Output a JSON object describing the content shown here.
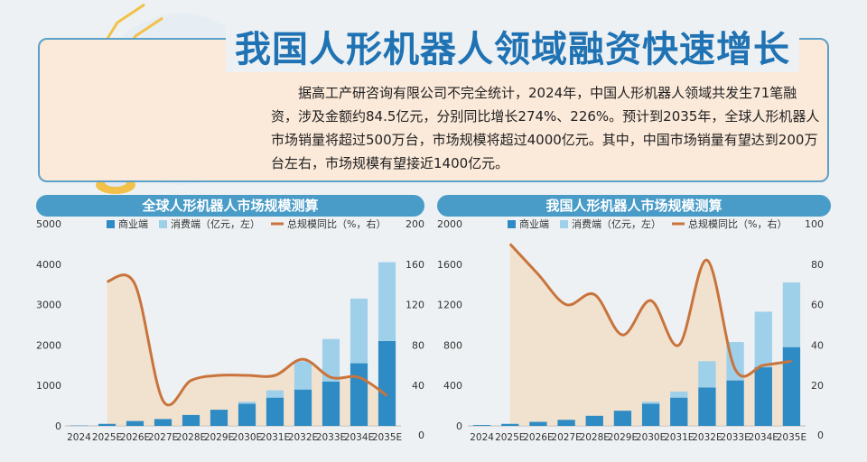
{
  "title": "我国人形机器人领域融资快速增长",
  "intro": "据高工产研咨询有限公司不完全统计，2024年，中国人形机器人领域共发生71笔融资，涉及金额约84.5亿元，分别同比增长274%、226%。预计到2035年，全球人形机器人市场销量将超过500万台，市场规模将超过4000亿元。其中，中国市场销量有望达到200万台左右，市场规模有望接近1400亿元。",
  "colors": {
    "business": "#2e8bc4",
    "consumer": "#9fd0ea",
    "yoy": "#c8743c",
    "header": "#4a9cc8",
    "title": "#1f72b3"
  },
  "chart_data": [
    {
      "type": "bar",
      "title": "全球人形机器人市场规模测算",
      "legend": [
        "商业端",
        "消费端（亿元，左）",
        "总规模同比（%，右）"
      ],
      "categories": [
        "2024",
        "2025E",
        "2026E",
        "2027E",
        "2028E",
        "2029E",
        "2030E",
        "2031E",
        "2032E",
        "2033E",
        "2034E",
        "2035E"
      ],
      "series": [
        {
          "name": "商业端",
          "values": [
            8,
            50,
            120,
            170,
            270,
            400,
            550,
            700,
            900,
            1100,
            1550,
            2100
          ]
        },
        {
          "name": "消费端（亿元，左）",
          "values": [
            0,
            0,
            0,
            0,
            0,
            0,
            50,
            180,
            700,
            1050,
            1600,
            1950
          ]
        },
        {
          "name": "总规模同比（%，右）",
          "values": [
            null,
            143,
            140,
            25,
            45,
            50,
            50,
            50,
            66,
            48,
            48,
            30
          ]
        }
      ],
      "ylim_left": [
        0,
        5000
      ],
      "yticks_left": [
        "0",
        "1000",
        "2000",
        "3000",
        "4000",
        "5000"
      ],
      "ylim_right": [
        0,
        200
      ],
      "yticks_right": [
        "40",
        "80",
        "120",
        "160",
        "200"
      ]
    },
    {
      "type": "bar",
      "title": "我国人形机器人市场规模测算",
      "legend": [
        "商业端",
        "消费端（亿元，左）",
        "总规模同比（%，右）"
      ],
      "categories": [
        "2024",
        "2025E",
        "2026E",
        "2027E",
        "2028E",
        "2029E",
        "2030E",
        "2031E",
        "2032E",
        "2033E",
        "2034E",
        "2035E"
      ],
      "series": [
        {
          "name": "商业端",
          "values": [
            8,
            20,
            40,
            60,
            100,
            150,
            220,
            280,
            380,
            450,
            580,
            780
          ]
        },
        {
          "name": "消费端（亿元，左）",
          "values": [
            0,
            0,
            0,
            0,
            0,
            0,
            20,
            60,
            260,
            380,
            550,
            640
          ]
        },
        {
          "name": "总规模同比（%，右）",
          "values": [
            null,
            90,
            75,
            60,
            65,
            45,
            62,
            40,
            82,
            28,
            30,
            32
          ]
        }
      ],
      "ylim_left": [
        0,
        2000
      ],
      "yticks_left": [
        "0",
        "400",
        "800",
        "1200",
        "1600",
        "2000"
      ],
      "ylim_right": [
        0,
        100
      ],
      "yticks_right": [
        "20",
        "40",
        "60",
        "80",
        "100"
      ]
    }
  ]
}
